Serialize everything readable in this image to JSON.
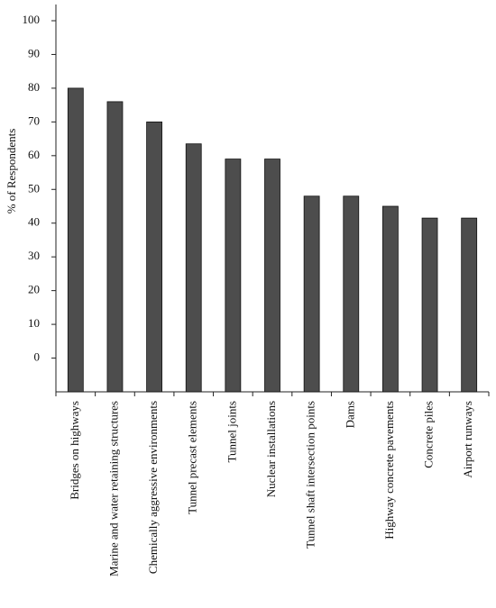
{
  "chart_data": {
    "type": "bar",
    "y_label": "% of Respondents",
    "categories": [
      "Bridges on highways",
      "Marine and water retaining structures",
      "Chemically aggressive environments",
      "Tunnel precast elements",
      "Tunnel joints",
      "Nuclear installations",
      "Tunnel shaft intersection points",
      "Dams",
      "Highway concrete pavements",
      "Concrete piles",
      "Airport runways"
    ],
    "values": [
      80,
      76,
      70,
      63.5,
      59,
      59,
      48,
      48,
      45,
      41.5,
      41.5
    ],
    "color": "#4d4d4d",
    "ylim": [
      -10,
      100
    ],
    "yticks": [
      0,
      10,
      20,
      30,
      40,
      50,
      60,
      70,
      80,
      90,
      100
    ]
  }
}
